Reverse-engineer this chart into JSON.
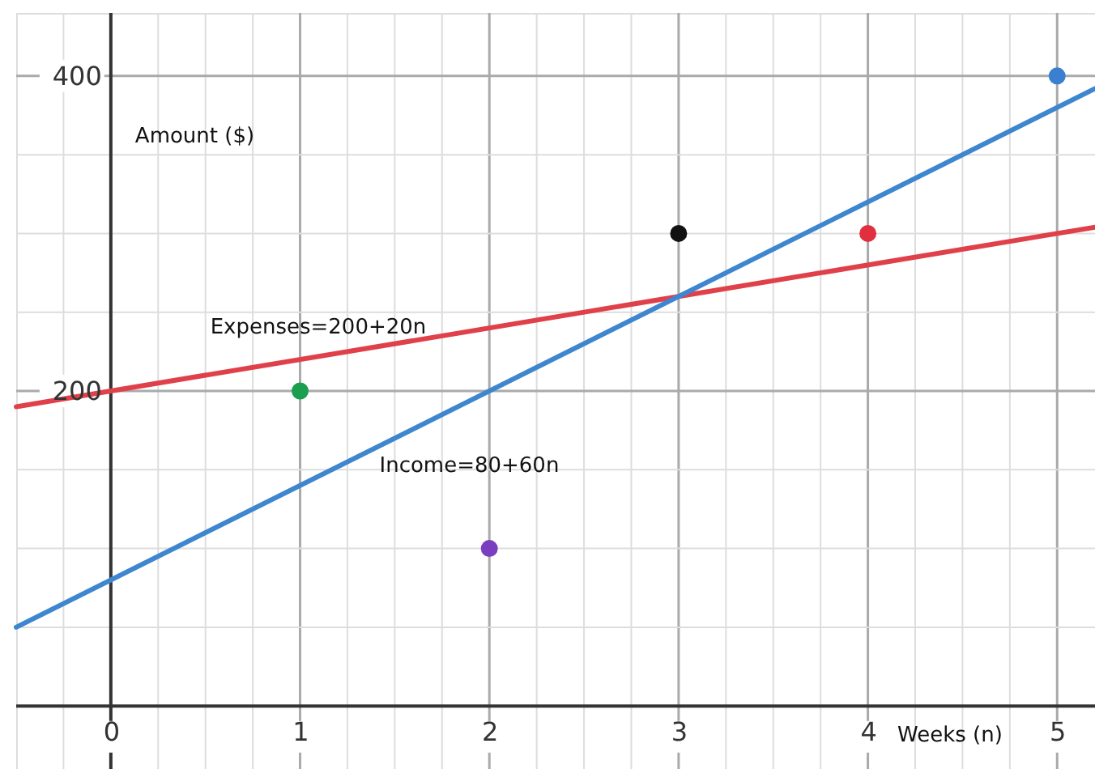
{
  "chart_data": {
    "type": "line",
    "xlabel": "Weeks (n)",
    "ylabel": "Amount ($)",
    "xlim": [
      -0.5,
      5.2
    ],
    "ylim": [
      -40,
      440
    ],
    "xticks": [
      {
        "value": -0.25,
        "label": null
      },
      0,
      {
        "value": 0.25,
        "label": null
      },
      {
        "value": 0.5,
        "label": null
      },
      {
        "value": 0.75,
        "label": null
      },
      1,
      {
        "value": 1.25,
        "label": null
      },
      {
        "value": 1.5,
        "label": null
      },
      {
        "value": 1.75,
        "label": null
      },
      2,
      {
        "value": 2.25,
        "label": null
      },
      {
        "value": 2.5,
        "label": null
      },
      {
        "value": 2.75,
        "label": null
      },
      3,
      {
        "value": 3.25,
        "label": null
      },
      {
        "value": 3.5,
        "label": null
      },
      {
        "value": 3.75,
        "label": null
      },
      4,
      {
        "value": 4.25,
        "label": null
      },
      {
        "value": 4.5,
        "label": null
      },
      {
        "value": 4.75,
        "label": null
      },
      5
    ],
    "yticks": [
      {
        "value": 50,
        "label": null
      },
      {
        "value": 100,
        "label": null
      },
      {
        "value": 150,
        "label": null
      },
      200,
      {
        "value": 250,
        "label": null
      },
      {
        "value": 300,
        "label": null
      },
      {
        "value": 350,
        "label": null
      },
      400
    ],
    "grid": true,
    "line_style": "solid",
    "series": [
      {
        "name": "Expenses=200+20n",
        "color": "#e0404a",
        "x": [
          -0.5,
          5.2
        ],
        "values": [
          190,
          304
        ]
      },
      {
        "name": "Income=80+60n",
        "color": "#3f86d0",
        "x": [
          -0.5,
          5.2
        ],
        "values": [
          50,
          392
        ]
      },
      {
        "type": "scatter",
        "marker": "circle",
        "x": [
          1,
          2,
          3,
          4,
          5
        ],
        "values": [
          200,
          100,
          300,
          300,
          400
        ],
        "colors": [
          "#1a9e4f",
          "#7a3fbf",
          "#111111",
          "#e0303f",
          "#3a7fd0"
        ]
      }
    ]
  }
}
